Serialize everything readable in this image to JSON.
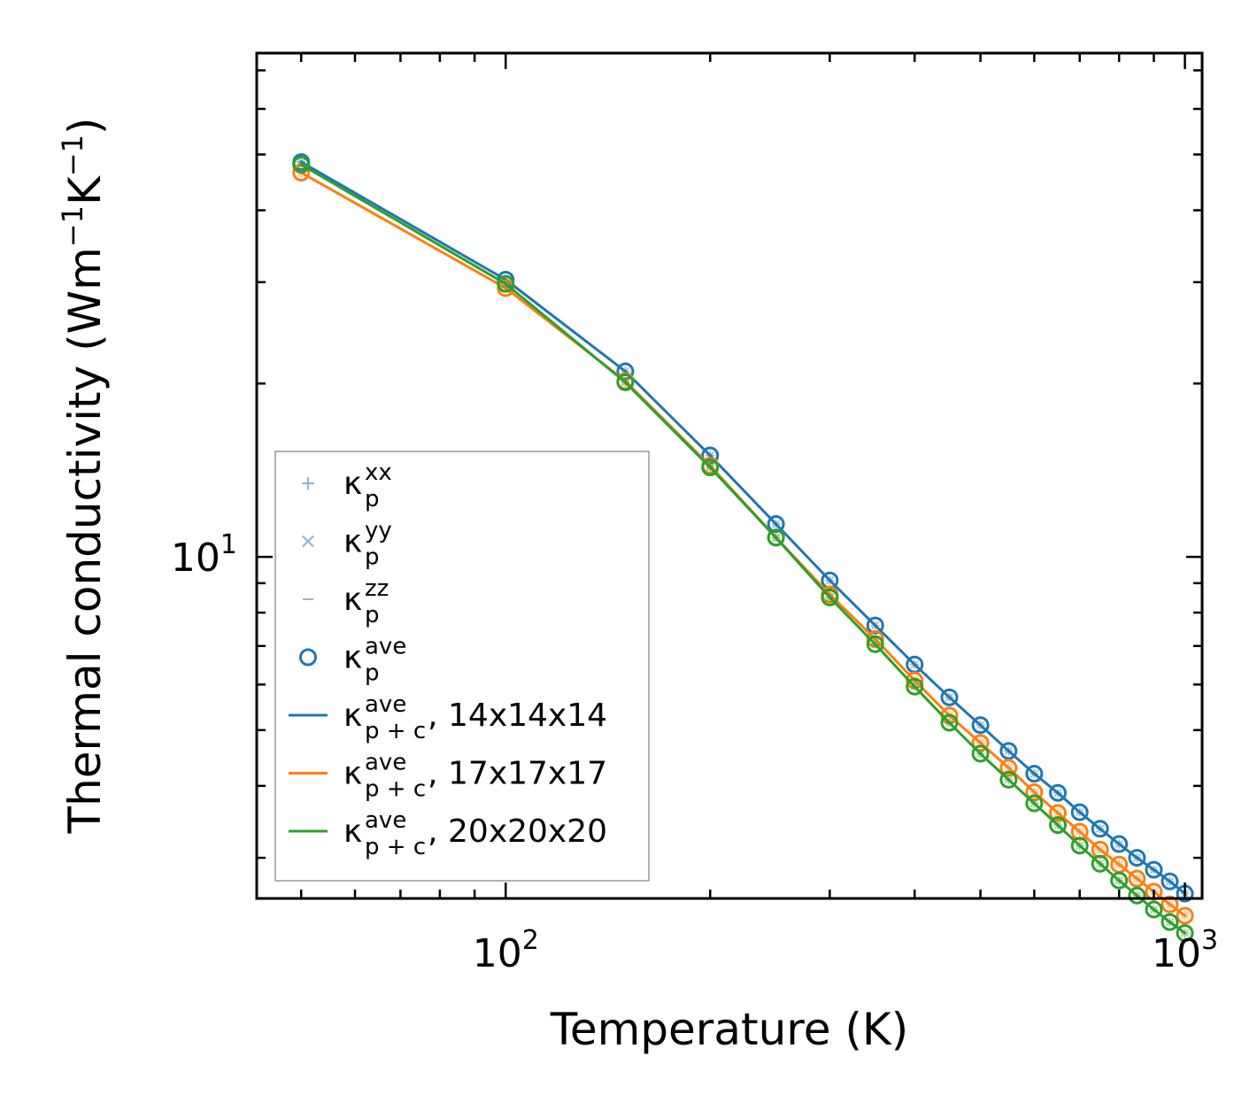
{
  "chart_data": {
    "type": "line",
    "xlabel": "Temperature (K)",
    "ylabel_parts": [
      "Thermal conductivity (Wm",
      "−1",
      "K",
      "−1",
      ")"
    ],
    "xscale": "log",
    "yscale": "log",
    "xlim": [
      43,
      1060
    ],
    "ylim": [
      2.55,
      75
    ],
    "x_ticks": [
      {
        "value": 100,
        "base": "10",
        "exp": "2"
      },
      {
        "value": 1000,
        "base": "10",
        "exp": "3"
      }
    ],
    "y_ticks": [
      {
        "value": 10,
        "base": "10",
        "exp": "1"
      }
    ],
    "x": [
      50,
      100,
      150,
      200,
      250,
      300,
      350,
      400,
      450,
      500,
      550,
      600,
      650,
      700,
      750,
      800,
      850,
      900,
      950,
      1000
    ],
    "series": [
      {
        "name": "14x14x14",
        "color": "#1f77b4",
        "values": [
          48.5,
          30.3,
          21.0,
          15.0,
          11.4,
          9.1,
          7.6,
          6.5,
          5.7,
          5.1,
          4.6,
          4.2,
          3.89,
          3.6,
          3.37,
          3.17,
          3.0,
          2.86,
          2.73,
          2.6
        ]
      },
      {
        "name": "17x17x17",
        "color": "#ff7f0e",
        "values": [
          46.5,
          29.3,
          20.2,
          14.4,
          10.8,
          8.6,
          7.2,
          6.1,
          5.3,
          4.75,
          4.3,
          3.9,
          3.59,
          3.33,
          3.1,
          2.92,
          2.76,
          2.62,
          2.49,
          2.38
        ]
      },
      {
        "name": "20x20x20",
        "color": "#2ca02c",
        "values": [
          48.0,
          29.8,
          20.1,
          14.3,
          10.8,
          8.5,
          7.05,
          5.95,
          5.15,
          4.55,
          4.1,
          3.73,
          3.42,
          3.15,
          2.93,
          2.74,
          2.58,
          2.44,
          2.32,
          2.22
        ]
      }
    ]
  },
  "legend": {
    "items": [
      {
        "symbol": "+",
        "kappa": "κ",
        "sub": "p",
        "sup": "xx",
        "suffix": ""
      },
      {
        "symbol": "×",
        "kappa": "κ",
        "sub": "p",
        "sup": "yy",
        "suffix": ""
      },
      {
        "symbol": "−",
        "kappa": "κ",
        "sub": "p",
        "sup": "zz",
        "suffix": ""
      },
      {
        "symbol": "o",
        "kappa": "κ",
        "sub": "p",
        "sup": "ave",
        "suffix": ""
      },
      {
        "symbol": "line",
        "color": "#1f77b4",
        "kappa": "κ",
        "sub": "p + c",
        "sup": "ave",
        "suffix": ", 14x14x14"
      },
      {
        "symbol": "line",
        "color": "#ff7f0e",
        "kappa": "κ",
        "sub": "p + c",
        "sup": "ave",
        "suffix": ", 17x17x17"
      },
      {
        "symbol": "line",
        "color": "#2ca02c",
        "kappa": "κ",
        "sub": "p + c",
        "sup": "ave",
        "suffix": ", 20x20x20"
      }
    ]
  }
}
